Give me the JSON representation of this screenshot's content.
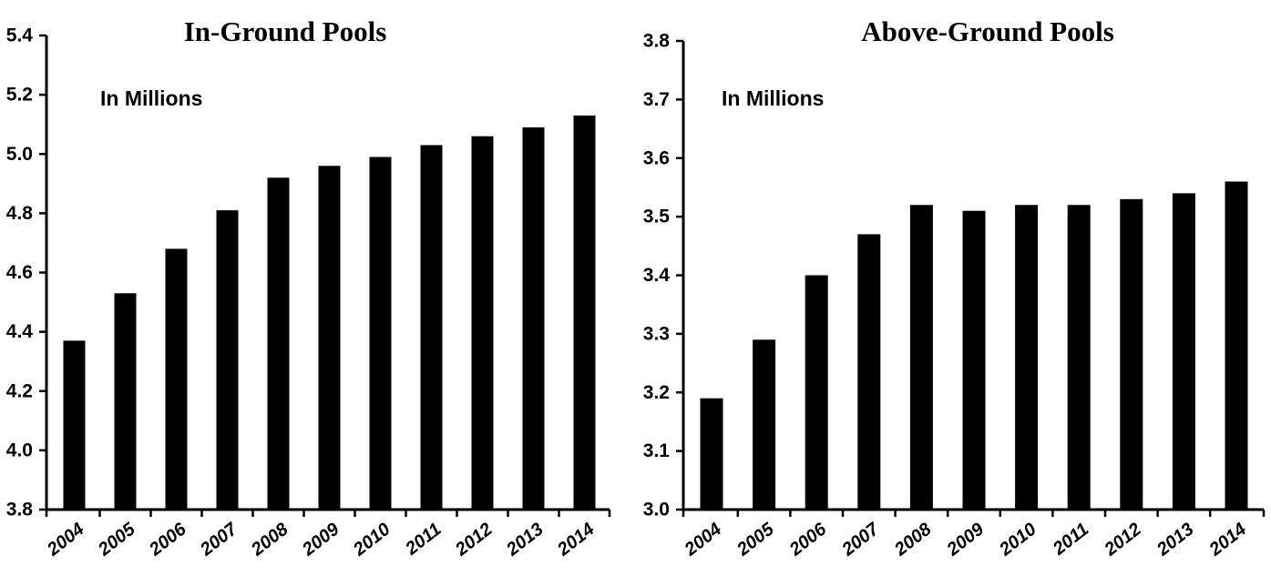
{
  "page": {
    "background_color": "#ffffff",
    "text_color": "#000000"
  },
  "chart_data": [
    {
      "type": "bar",
      "title": "In-Ground Pools",
      "units_label": "In Millions",
      "xlabel": "",
      "ylabel": "",
      "categories": [
        "2004",
        "2005",
        "2006",
        "2007",
        "2008",
        "2009",
        "2010",
        "2011",
        "2012",
        "2013",
        "2014"
      ],
      "values": [
        4.37,
        4.53,
        4.68,
        4.81,
        4.92,
        4.96,
        4.99,
        5.03,
        5.06,
        5.09,
        5.13
      ],
      "ylim": [
        3.8,
        5.4
      ],
      "ytick_step": 0.2,
      "ytick_labels": [
        "3.8",
        "4.0",
        "4.2",
        "4.4",
        "4.6",
        "4.8",
        "5.0",
        "5.2",
        "5.4"
      ],
      "grid": false,
      "legend": "none",
      "bar_color": "#000000",
      "axis_color": "#000000"
    },
    {
      "type": "bar",
      "title": "Above-Ground Pools",
      "units_label": "In Millions",
      "xlabel": "",
      "ylabel": "",
      "categories": [
        "2004",
        "2005",
        "2006",
        "2007",
        "2008",
        "2009",
        "2010",
        "2011",
        "2012",
        "2013",
        "2014"
      ],
      "values": [
        3.19,
        3.29,
        3.4,
        3.47,
        3.52,
        3.51,
        3.52,
        3.52,
        3.53,
        3.54,
        3.56
      ],
      "ylim": [
        3.0,
        3.8
      ],
      "ytick_step": 0.1,
      "ytick_labels": [
        "3.0",
        "3.1",
        "3.2",
        "3.3",
        "3.4",
        "3.5",
        "3.6",
        "3.7",
        "3.8"
      ],
      "grid": false,
      "legend": "none",
      "bar_color": "#000000",
      "axis_color": "#000000"
    }
  ]
}
